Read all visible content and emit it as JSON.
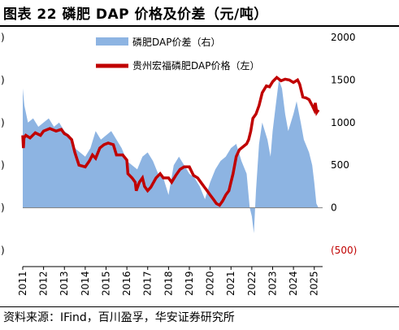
{
  "header": {
    "title": "图表 22 磷肥 DAP 价格及价差（元/吨）"
  },
  "footer": {
    "source": "资料来源：IFind，百川盈孚，华安证券研究所"
  },
  "colors": {
    "spread": "#8db4e2",
    "price": "#c00000",
    "negative_tick": "#c00000"
  },
  "chart_data": {
    "type": "line",
    "series": [
      {
        "name": "磷肥DAP价差（右）",
        "kind": "area",
        "axis": "right",
        "color": "#8db4e2",
        "points": [
          [
            2011.0,
            1400
          ],
          [
            2011.08,
            1200
          ],
          [
            2011.25,
            1000
          ],
          [
            2011.5,
            1050
          ],
          [
            2011.75,
            950
          ],
          [
            2012.0,
            1000
          ],
          [
            2012.25,
            1050
          ],
          [
            2012.5,
            950
          ],
          [
            2012.75,
            1000
          ],
          [
            2013.0,
            900
          ],
          [
            2013.25,
            850
          ],
          [
            2013.5,
            700
          ],
          [
            2013.75,
            650
          ],
          [
            2014.0,
            600
          ],
          [
            2014.25,
            700
          ],
          [
            2014.5,
            900
          ],
          [
            2014.75,
            800
          ],
          [
            2015.0,
            850
          ],
          [
            2015.25,
            900
          ],
          [
            2015.5,
            800
          ],
          [
            2015.75,
            700
          ],
          [
            2016.0,
            550
          ],
          [
            2016.25,
            500
          ],
          [
            2016.5,
            450
          ],
          [
            2016.75,
            600
          ],
          [
            2017.0,
            650
          ],
          [
            2017.25,
            550
          ],
          [
            2017.5,
            400
          ],
          [
            2017.75,
            350
          ],
          [
            2018.0,
            150
          ],
          [
            2018.25,
            500
          ],
          [
            2018.5,
            600
          ],
          [
            2018.75,
            500
          ],
          [
            2019.0,
            400
          ],
          [
            2019.25,
            350
          ],
          [
            2019.5,
            250
          ],
          [
            2019.75,
            100
          ],
          [
            2020.0,
            300
          ],
          [
            2020.25,
            450
          ],
          [
            2020.5,
            550
          ],
          [
            2020.75,
            600
          ],
          [
            2021.0,
            700
          ],
          [
            2021.25,
            750
          ],
          [
            2021.5,
            550
          ],
          [
            2021.75,
            400
          ],
          [
            2021.9,
            0
          ],
          [
            2022.0,
            -100
          ],
          [
            2022.1,
            -300
          ],
          [
            2022.2,
            200
          ],
          [
            2022.35,
            750
          ],
          [
            2022.5,
            1000
          ],
          [
            2022.75,
            800
          ],
          [
            2022.9,
            600
          ],
          [
            2023.0,
            900
          ],
          [
            2023.15,
            1200
          ],
          [
            2023.3,
            1500
          ],
          [
            2023.45,
            1400
          ],
          [
            2023.6,
            1100
          ],
          [
            2023.75,
            900
          ],
          [
            2024.0,
            1100
          ],
          [
            2024.15,
            1250
          ],
          [
            2024.35,
            1000
          ],
          [
            2024.5,
            800
          ],
          [
            2024.75,
            650
          ],
          [
            2024.9,
            500
          ],
          [
            2025.0,
            300
          ],
          [
            2025.1,
            50
          ],
          [
            2025.2,
            0
          ]
        ]
      },
      {
        "name": "贵州宏福磷肥DAP价格（左）",
        "kind": "line",
        "axis": "left",
        "color": "#c00000",
        "points": [
          [
            2011.0,
            2850
          ],
          [
            2011.03,
            2700
          ],
          [
            2011.06,
            2820
          ],
          [
            2011.15,
            2850
          ],
          [
            2011.35,
            2820
          ],
          [
            2011.6,
            2880
          ],
          [
            2011.85,
            2850
          ],
          [
            2012.0,
            2900
          ],
          [
            2012.3,
            2930
          ],
          [
            2012.6,
            2900
          ],
          [
            2012.85,
            2920
          ],
          [
            2013.0,
            2870
          ],
          [
            2013.15,
            2850
          ],
          [
            2013.35,
            2800
          ],
          [
            2013.5,
            2650
          ],
          [
            2013.7,
            2500
          ],
          [
            2014.0,
            2480
          ],
          [
            2014.2,
            2550
          ],
          [
            2014.35,
            2620
          ],
          [
            2014.5,
            2580
          ],
          [
            2014.7,
            2700
          ],
          [
            2014.9,
            2740
          ],
          [
            2015.1,
            2760
          ],
          [
            2015.35,
            2740
          ],
          [
            2015.5,
            2620
          ],
          [
            2015.65,
            2620
          ],
          [
            2015.8,
            2620
          ],
          [
            2016.0,
            2560
          ],
          [
            2016.05,
            2400
          ],
          [
            2016.25,
            2350
          ],
          [
            2016.4,
            2300
          ],
          [
            2016.45,
            2200
          ],
          [
            2016.6,
            2300
          ],
          [
            2016.75,
            2350
          ],
          [
            2016.85,
            2250
          ],
          [
            2017.0,
            2200
          ],
          [
            2017.15,
            2240
          ],
          [
            2017.4,
            2350
          ],
          [
            2017.6,
            2400
          ],
          [
            2017.75,
            2350
          ],
          [
            2018.0,
            2350
          ],
          [
            2018.15,
            2300
          ],
          [
            2018.35,
            2380
          ],
          [
            2018.55,
            2450
          ],
          [
            2018.75,
            2480
          ],
          [
            2019.0,
            2480
          ],
          [
            2019.2,
            2380
          ],
          [
            2019.4,
            2350
          ],
          [
            2019.55,
            2300
          ],
          [
            2019.7,
            2250
          ],
          [
            2019.85,
            2200
          ],
          [
            2020.0,
            2150
          ],
          [
            2020.15,
            2100
          ],
          [
            2020.3,
            2050
          ],
          [
            2020.45,
            2030
          ],
          [
            2020.6,
            2080
          ],
          [
            2020.75,
            2150
          ],
          [
            2020.9,
            2200
          ],
          [
            2021.0,
            2300
          ],
          [
            2021.1,
            2400
          ],
          [
            2021.25,
            2600
          ],
          [
            2021.4,
            2680
          ],
          [
            2021.6,
            2720
          ],
          [
            2021.75,
            2750
          ],
          [
            2021.85,
            2800
          ],
          [
            2021.95,
            2900
          ],
          [
            2022.05,
            3050
          ],
          [
            2022.2,
            3100
          ],
          [
            2022.35,
            3200
          ],
          [
            2022.5,
            3350
          ],
          [
            2022.7,
            3430
          ],
          [
            2022.85,
            3420
          ],
          [
            2023.0,
            3480
          ],
          [
            2023.2,
            3530
          ],
          [
            2023.4,
            3490
          ],
          [
            2023.6,
            3510
          ],
          [
            2023.8,
            3500
          ],
          [
            2024.0,
            3470
          ],
          [
            2024.2,
            3500
          ],
          [
            2024.3,
            3450
          ],
          [
            2024.45,
            3300
          ],
          [
            2024.6,
            3290
          ],
          [
            2024.75,
            3270
          ],
          [
            2024.9,
            3200
          ],
          [
            2025.0,
            3150
          ],
          [
            2025.05,
            3230
          ],
          [
            2025.12,
            3120
          ],
          [
            2025.2,
            3150
          ]
        ]
      }
    ],
    "x_ticks": [
      "2011",
      "2012",
      "2013",
      "2014",
      "2015",
      "2016",
      "2017",
      "2018",
      "2019",
      "2020",
      "2021",
      "2022",
      "2023",
      "2024",
      "2025"
    ],
    "xlim": [
      2011,
      2025.4
    ],
    "y2_ticks": [
      "2000",
      "1500",
      "1000",
      "500",
      "0",
      "(500)"
    ],
    "y2lim": [
      -500,
      2000
    ],
    "left_ticks_visible": [
      ")",
      ")",
      ")",
      ")",
      ")",
      ")"
    ],
    "ylim": [
      1500,
      4000
    ],
    "legend_position": "top-center",
    "grid": false
  }
}
